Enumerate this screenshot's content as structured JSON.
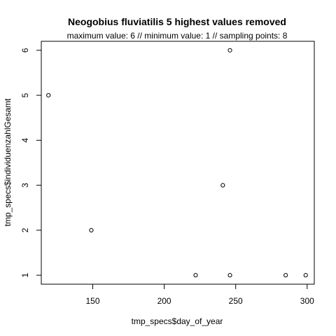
{
  "chart_data": {
    "type": "scatter",
    "title": "Neogobius fluviatilis  5 highest values removed",
    "subtitle": "maximum value: 6  //  minimum value: 1  // sampling points: 8",
    "xlabel": "tmp_specs$day_of_year",
    "ylabel": "tmp_specs$individuenzahlGesamt",
    "xlim": [
      114,
      305
    ],
    "ylim": [
      0.8,
      6.2
    ],
    "xticks": [
      150,
      200,
      250,
      300
    ],
    "yticks": [
      1,
      2,
      3,
      4,
      5,
      6
    ],
    "xticklabels": [
      "150",
      "200",
      "250",
      "300"
    ],
    "yticklabels": [
      "1",
      "2",
      "3",
      "4",
      "5",
      "6"
    ],
    "grid": false,
    "points": [
      {
        "x": 119,
        "y": 5
      },
      {
        "x": 149,
        "y": 2
      },
      {
        "x": 222,
        "y": 1
      },
      {
        "x": 241,
        "y": 3
      },
      {
        "x": 246,
        "y": 6
      },
      {
        "x": 246,
        "y": 1
      },
      {
        "x": 285,
        "y": 1
      },
      {
        "x": 299,
        "y": 1
      }
    ]
  }
}
